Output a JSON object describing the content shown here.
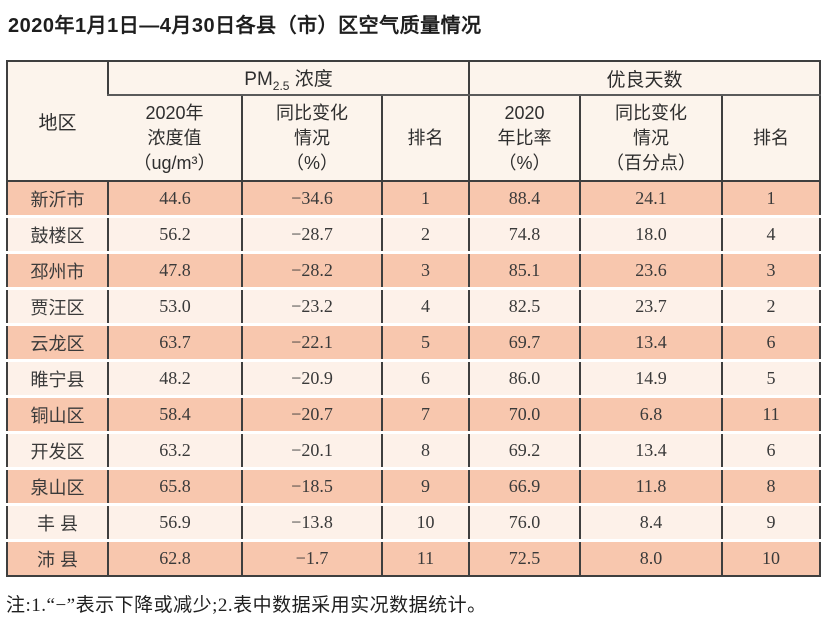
{
  "title": "2020年1月1日—4月30日各县（市）区空气质量情况",
  "note": "注:1.“−”表示下降或减少;2.表中数据采用实况数据统计。",
  "colors": {
    "row_odd_bg": "#f8c7ae",
    "row_even_bg": "#fdf1e9",
    "header_bg": "#fcf4ec",
    "grid_line": "#3f3f3f",
    "text": "#2e2e2e"
  },
  "table": {
    "corner_header": "地区",
    "group_headers": {
      "pm": {
        "prefix": "PM",
        "subscript": "2.5",
        "label": " 浓度"
      },
      "days": {
        "label": "优良天数"
      }
    },
    "sub_headers": {
      "pm_value": [
        "2020年",
        "浓度值",
        "（ug/m³）"
      ],
      "pm_change": [
        "同比变化",
        "情况",
        "（%）"
      ],
      "pm_rank": "排名",
      "days_ratio": [
        "2020",
        "年比率",
        "（%）"
      ],
      "days_change": [
        "同比变化",
        "情况",
        "（百分点）"
      ],
      "days_rank": "排名"
    },
    "rows": [
      {
        "region": "新沂市",
        "pm_value": "44.6",
        "pm_change": "−34.6",
        "pm_rank": "1",
        "days_ratio": "88.4",
        "days_change": "24.1",
        "days_rank": "1"
      },
      {
        "region": "鼓楼区",
        "pm_value": "56.2",
        "pm_change": "−28.7",
        "pm_rank": "2",
        "days_ratio": "74.8",
        "days_change": "18.0",
        "days_rank": "4"
      },
      {
        "region": "邳州市",
        "pm_value": "47.8",
        "pm_change": "−28.2",
        "pm_rank": "3",
        "days_ratio": "85.1",
        "days_change": "23.6",
        "days_rank": "3"
      },
      {
        "region": "贾汪区",
        "pm_value": "53.0",
        "pm_change": "−23.2",
        "pm_rank": "4",
        "days_ratio": "82.5",
        "days_change": "23.7",
        "days_rank": "2"
      },
      {
        "region": "云龙区",
        "pm_value": "63.7",
        "pm_change": "−22.1",
        "pm_rank": "5",
        "days_ratio": "69.7",
        "days_change": "13.4",
        "days_rank": "6"
      },
      {
        "region": "睢宁县",
        "pm_value": "48.2",
        "pm_change": "−20.9",
        "pm_rank": "6",
        "days_ratio": "86.0",
        "days_change": "14.9",
        "days_rank": "5"
      },
      {
        "region": "铜山区",
        "pm_value": "58.4",
        "pm_change": "−20.7",
        "pm_rank": "7",
        "days_ratio": "70.0",
        "days_change": "6.8",
        "days_rank": "11"
      },
      {
        "region": "开发区",
        "pm_value": "63.2",
        "pm_change": "−20.1",
        "pm_rank": "8",
        "days_ratio": "69.2",
        "days_change": "13.4",
        "days_rank": "6"
      },
      {
        "region": "泉山区",
        "pm_value": "65.8",
        "pm_change": "−18.5",
        "pm_rank": "9",
        "days_ratio": "66.9",
        "days_change": "11.8",
        "days_rank": "8"
      },
      {
        "region": "丰 县",
        "pm_value": "56.9",
        "pm_change": "−13.8",
        "pm_rank": "10",
        "days_ratio": "76.0",
        "days_change": "8.4",
        "days_rank": "9"
      },
      {
        "region": "沛 县",
        "pm_value": "62.8",
        "pm_change": "−1.7",
        "pm_rank": "11",
        "days_ratio": "72.5",
        "days_change": "8.0",
        "days_rank": "10"
      }
    ]
  }
}
